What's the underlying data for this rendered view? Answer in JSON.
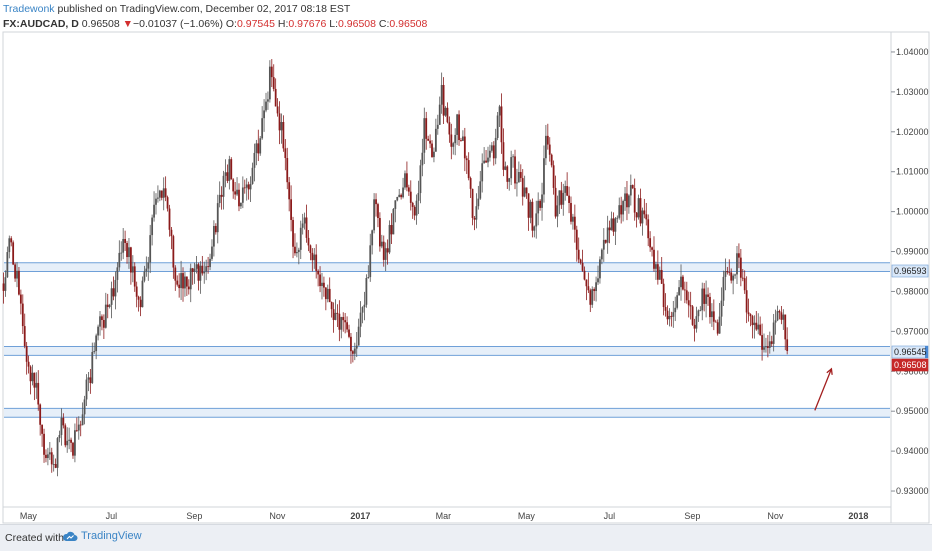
{
  "header": {
    "author": "Tradewonk",
    "published_text": " published on TradingView.com, December 02, 2017 08:18 EST",
    "symbol": "FX:AUDCAD, D",
    "last": "0.96508",
    "change_arrow": "▼",
    "change": "−0.01037 (−1.06%)",
    "o_label": "O:",
    "o_value": "0.97545",
    "h_label": "H:",
    "h_value": "0.97676",
    "l_label": "L:",
    "l_value": "0.96508",
    "c_label": "C:",
    "c_value": "0.96508"
  },
  "footer": {
    "created_with": "Created with",
    "brand": "TradingView",
    "brand_icon": "tradingview-cloud-icon"
  },
  "colors": {
    "bull": "#555555",
    "bear": "#8b1a1a",
    "zone_fill": "#dce8f7",
    "zone_line": "#6fa0d8",
    "last_price": "#c62828",
    "zone_tag": "#d9e7f8",
    "zone_tag_blue": "#4a89d4",
    "arrow": "#a31f1f"
  },
  "chart_data": {
    "type": "candlestick",
    "symbol": "FX:AUDCAD",
    "timeframe": "D",
    "ylim": [
      0.926,
      1.045
    ],
    "y_ticks": [
      "1.04000",
      "1.03000",
      "1.02000",
      "1.01000",
      "1.00000",
      "0.99000",
      "0.98000",
      "0.97000",
      "0.96000",
      "0.95000",
      "0.94000",
      "0.93000"
    ],
    "x_ticks": [
      "May",
      "Jul",
      "Sep",
      "Nov",
      "2017",
      "Mar",
      "May",
      "Jul",
      "Sep",
      "Nov",
      "2018"
    ],
    "x_tick_bold": [
      false,
      false,
      false,
      false,
      true,
      false,
      false,
      false,
      false,
      false,
      true
    ],
    "keypoints": [
      {
        "m": 0.0,
        "v": 0.982
      },
      {
        "m": 0.15,
        "v": 0.991
      },
      {
        "m": 0.4,
        "v": 0.981
      },
      {
        "m": 0.55,
        "v": 0.962
      },
      {
        "m": 0.8,
        "v": 0.955
      },
      {
        "m": 1.0,
        "v": 0.94
      },
      {
        "m": 1.2,
        "v": 0.935
      },
      {
        "m": 1.4,
        "v": 0.948
      },
      {
        "m": 1.6,
        "v": 0.94
      },
      {
        "m": 1.8,
        "v": 0.944
      },
      {
        "m": 2.0,
        "v": 0.955
      },
      {
        "m": 2.3,
        "v": 0.97
      },
      {
        "m": 2.7,
        "v": 0.983
      },
      {
        "m": 2.9,
        "v": 0.995
      },
      {
        "m": 3.05,
        "v": 0.988
      },
      {
        "m": 3.3,
        "v": 0.978
      },
      {
        "m": 3.5,
        "v": 0.99
      },
      {
        "m": 3.7,
        "v": 1.005
      },
      {
        "m": 3.9,
        "v": 1.003
      },
      {
        "m": 4.15,
        "v": 0.984
      },
      {
        "m": 4.4,
        "v": 0.982
      },
      {
        "m": 4.7,
        "v": 0.985
      },
      {
        "m": 5.0,
        "v": 0.99
      },
      {
        "m": 5.25,
        "v": 1.005
      },
      {
        "m": 5.45,
        "v": 1.012
      },
      {
        "m": 5.65,
        "v": 1.002
      },
      {
        "m": 5.95,
        "v": 1.008
      },
      {
        "m": 6.2,
        "v": 1.019
      },
      {
        "m": 6.35,
        "v": 1.028
      },
      {
        "m": 6.45,
        "v": 1.036
      },
      {
        "m": 6.55,
        "v": 1.026
      },
      {
        "m": 6.75,
        "v": 1.018
      },
      {
        "m": 6.9,
        "v": 0.998
      },
      {
        "m": 7.05,
        "v": 0.987
      },
      {
        "m": 7.2,
        "v": 1.0
      },
      {
        "m": 7.35,
        "v": 0.99
      },
      {
        "m": 7.55,
        "v": 0.986
      },
      {
        "m": 7.75,
        "v": 0.98
      },
      {
        "m": 7.95,
        "v": 0.973
      },
      {
        "m": 8.2,
        "v": 0.97
      },
      {
        "m": 8.45,
        "v": 0.966
      },
      {
        "m": 8.65,
        "v": 0.975
      },
      {
        "m": 8.8,
        "v": 0.985
      },
      {
        "m": 8.95,
        "v": 1.008
      },
      {
        "m": 9.05,
        "v": 0.993
      },
      {
        "m": 9.2,
        "v": 0.988
      },
      {
        "m": 9.45,
        "v": 1.003
      },
      {
        "m": 9.7,
        "v": 1.008
      },
      {
        "m": 9.95,
        "v": 1.0
      },
      {
        "m": 10.15,
        "v": 1.022
      },
      {
        "m": 10.35,
        "v": 1.015
      },
      {
        "m": 10.55,
        "v": 1.03
      },
      {
        "m": 10.75,
        "v": 1.018
      },
      {
        "m": 10.95,
        "v": 1.022
      },
      {
        "m": 11.15,
        "v": 1.012
      },
      {
        "m": 11.35,
        "v": 0.995
      },
      {
        "m": 11.55,
        "v": 1.013
      },
      {
        "m": 11.7,
        "v": 1.012
      },
      {
        "m": 11.85,
        "v": 1.017
      },
      {
        "m": 11.95,
        "v": 1.03
      },
      {
        "m": 12.05,
        "v": 1.008
      },
      {
        "m": 12.25,
        "v": 1.012
      },
      {
        "m": 12.5,
        "v": 1.005
      },
      {
        "m": 12.75,
        "v": 0.998
      },
      {
        "m": 12.95,
        "v": 1.003
      },
      {
        "m": 13.1,
        "v": 1.02
      },
      {
        "m": 13.3,
        "v": 1.0
      },
      {
        "m": 13.5,
        "v": 1.005
      },
      {
        "m": 13.7,
        "v": 0.999
      },
      {
        "m": 13.95,
        "v": 0.985
      },
      {
        "m": 14.1,
        "v": 0.978
      },
      {
        "m": 14.35,
        "v": 0.987
      },
      {
        "m": 14.6,
        "v": 0.995
      },
      {
        "m": 14.85,
        "v": 1.002
      },
      {
        "m": 15.1,
        "v": 1.004
      },
      {
        "m": 15.35,
        "v": 1.0
      },
      {
        "m": 15.55,
        "v": 0.993
      },
      {
        "m": 15.75,
        "v": 0.986
      },
      {
        "m": 15.95,
        "v": 0.976
      },
      {
        "m": 16.15,
        "v": 0.972
      },
      {
        "m": 16.35,
        "v": 0.982
      },
      {
        "m": 16.55,
        "v": 0.976
      },
      {
        "m": 16.7,
        "v": 0.972
      },
      {
        "m": 16.85,
        "v": 0.98
      },
      {
        "m": 17.05,
        "v": 0.976
      },
      {
        "m": 17.2,
        "v": 0.971
      },
      {
        "m": 17.35,
        "v": 0.981
      },
      {
        "m": 17.55,
        "v": 0.986
      },
      {
        "m": 17.7,
        "v": 0.987
      },
      {
        "m": 17.8,
        "v": 0.982
      },
      {
        "m": 17.95,
        "v": 0.975
      },
      {
        "m": 18.15,
        "v": 0.971
      },
      {
        "m": 18.35,
        "v": 0.966
      },
      {
        "m": 18.5,
        "v": 0.968
      },
      {
        "m": 18.6,
        "v": 0.972
      },
      {
        "m": 18.7,
        "v": 0.976
      },
      {
        "m": 18.8,
        "v": 0.973
      },
      {
        "m": 18.92,
        "v": 0.96508
      }
    ],
    "zones": [
      {
        "from": 0.985,
        "to": 0.9872
      },
      {
        "from": 0.964,
        "to": 0.9662
      },
      {
        "from": 0.9485,
        "to": 0.9507
      }
    ],
    "price_tags": [
      {
        "value": 0.96593,
        "text": "0.96593",
        "kind": "zone"
      },
      {
        "value": 0.96545,
        "text": "0.96545",
        "kind": "zone-blue"
      },
      {
        "value": 0.96508,
        "text": "0.96508",
        "kind": "last"
      }
    ],
    "arrow": {
      "from_m": 19.55,
      "from_v": 0.9502,
      "to_m": 19.95,
      "to_v": 0.9606
    }
  }
}
